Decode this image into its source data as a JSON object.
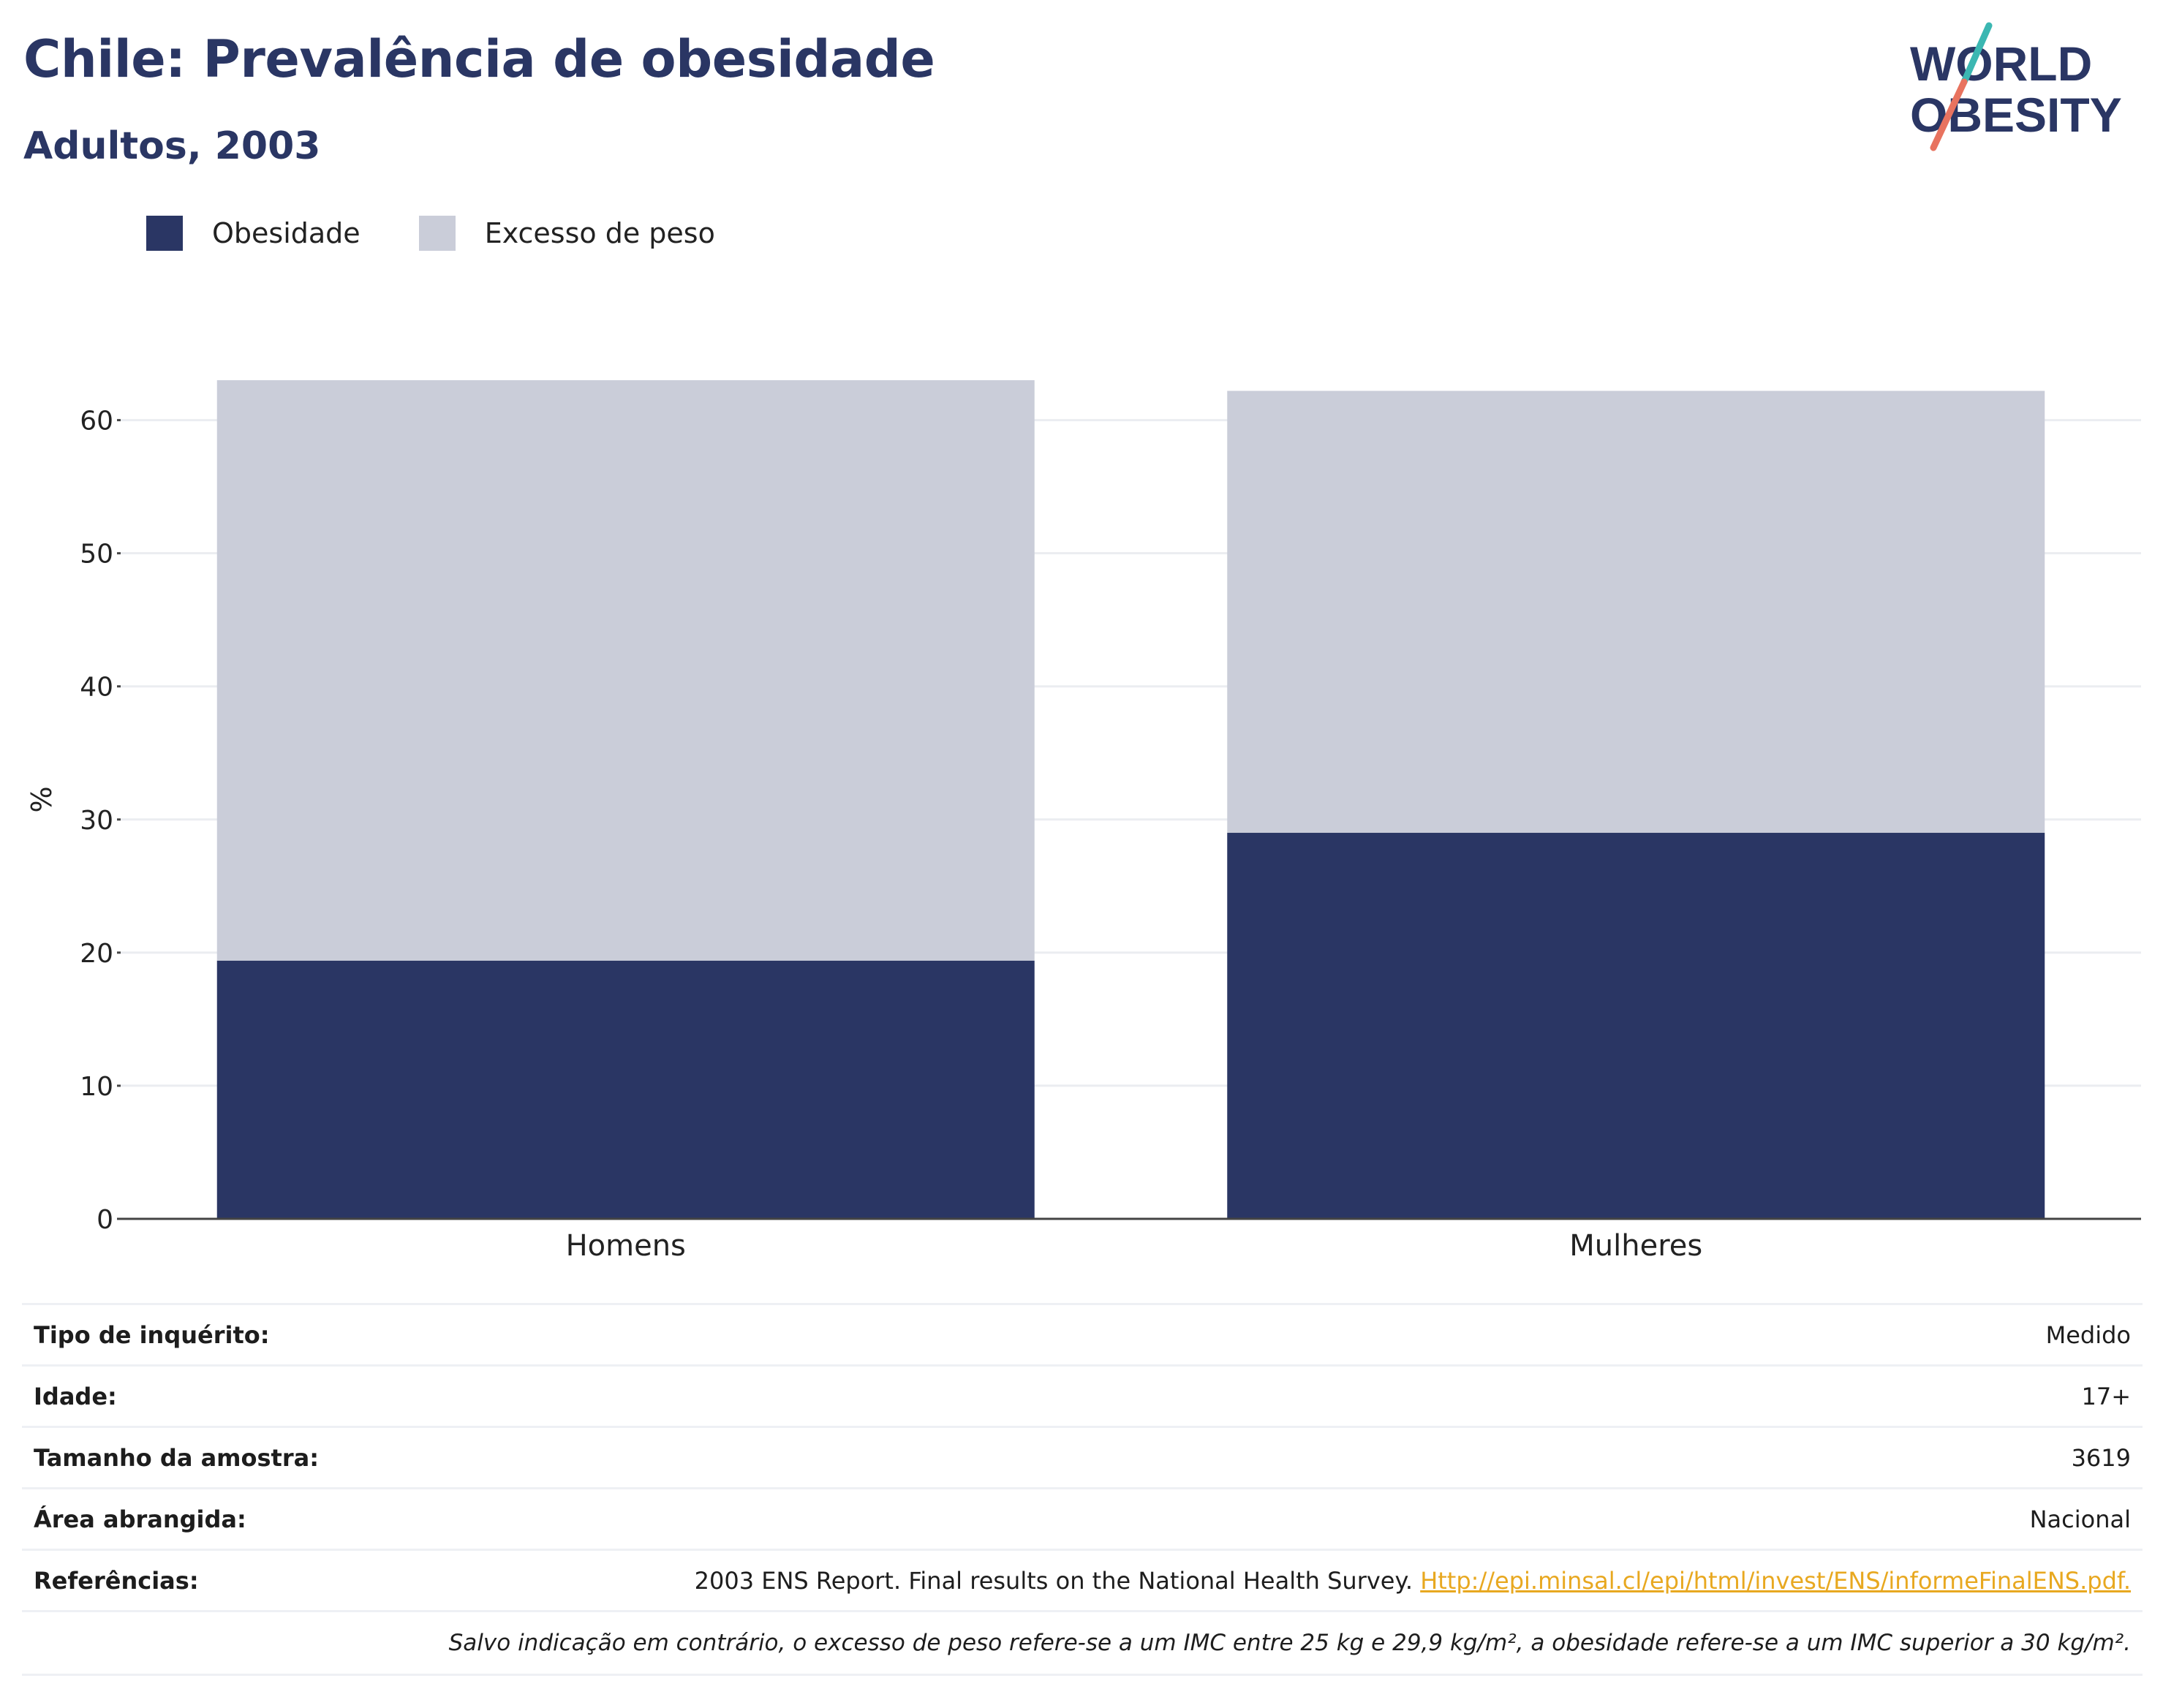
{
  "header": {
    "title": "Chile: Prevalência de obesidade",
    "subtitle": "Adultos, 2003"
  },
  "logo": {
    "line1": "WORLD",
    "line2": "OBESITY",
    "accent_teal": "#3bb7b2",
    "accent_coral": "#e8735f",
    "text_color": "#2a3664"
  },
  "legend": [
    {
      "label": "Obesidade",
      "color": "#2a3664"
    },
    {
      "label": "Excesso de peso",
      "color": "#cacdd9"
    }
  ],
  "chart_data": {
    "type": "bar",
    "stacked": true,
    "categories": [
      "Homens",
      "Mulheres"
    ],
    "series": [
      {
        "name": "Obesidade",
        "color": "#2a3664",
        "values": [
          19.4,
          29.0
        ]
      },
      {
        "name": "Excesso de peso",
        "color": "#cacdd9",
        "values": [
          43.6,
          33.2
        ]
      }
    ],
    "ylabel": "%",
    "ylim": [
      0,
      63
    ],
    "yticks": [
      0,
      10,
      20,
      30,
      40,
      50,
      60
    ],
    "grid": true
  },
  "meta": {
    "rows": [
      {
        "key": "Tipo de inquérito:",
        "value": "Medido"
      },
      {
        "key": "Idade:",
        "value": "17+"
      },
      {
        "key": "Tamanho da amostra:",
        "value": "3619"
      },
      {
        "key": "Área abrangida:",
        "value": "Nacional"
      }
    ],
    "ref_key": "Referências:",
    "ref_text": "2003 ENS Report. Final results on the National Health Survey. ",
    "ref_link": "Http://epi.minsal.cl/epi/html/invest/ENS/informeFinalENS.pdf.",
    "note": "Salvo indicação em contrário, o excesso de peso refere-se a um IMC entre 25 kg e 29,9 kg/m², a obesidade refere-se a um IMC superior a 30 kg/m²."
  }
}
